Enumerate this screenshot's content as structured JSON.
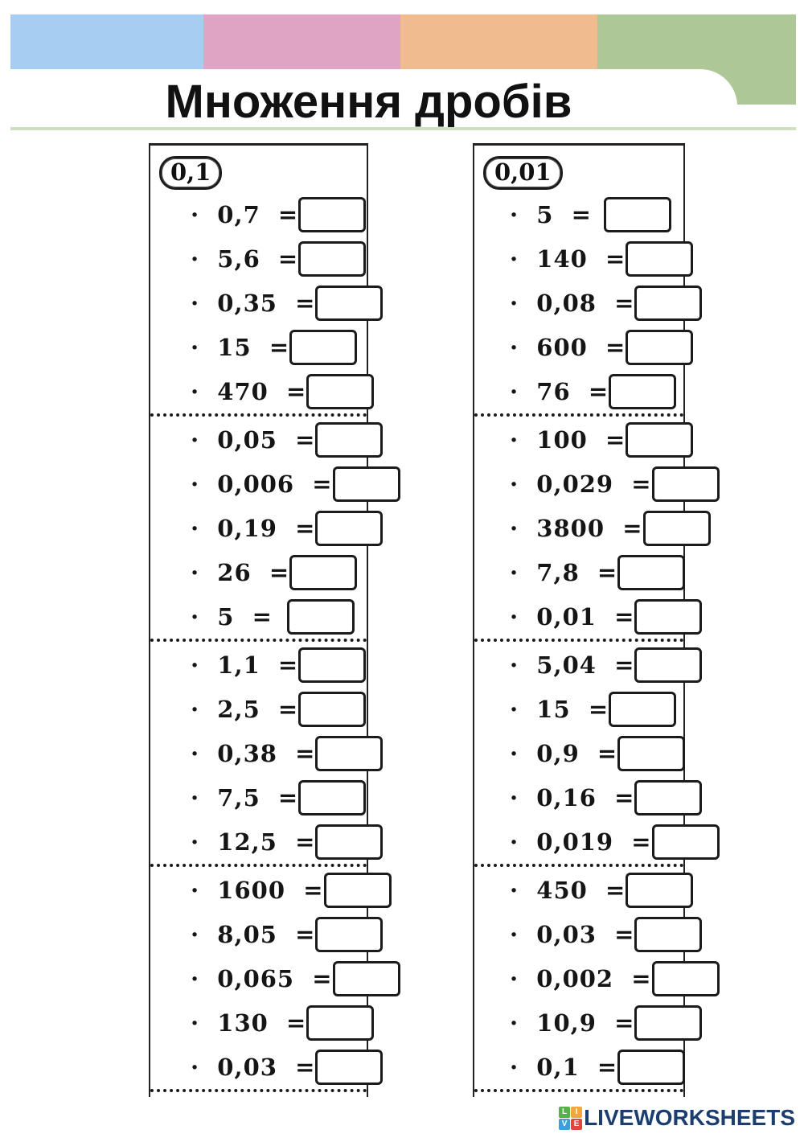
{
  "page": {
    "title": "Множення дробів",
    "colors": {
      "bar_blue": "#A5CEF2",
      "bar_pink": "#DFA3C3",
      "bar_orange": "#F0BC8E",
      "bar_green": "#ADC796",
      "divider_line": "#CFE0C0",
      "ink": "#1B1B1B",
      "logo_navy": "#1C3E6E"
    }
  },
  "worksheet": {
    "operator": "·",
    "equals": "=",
    "columns": [
      {
        "badge": "0,1",
        "groups": [
          [
            "0,7",
            "5,6",
            "0,35",
            "15",
            "470"
          ],
          [
            "0,05",
            "0,006",
            "0,19",
            "26",
            "5"
          ],
          [
            "1,1",
            "2,5",
            "0,38",
            "7,5",
            "12,5"
          ],
          [
            "1600",
            "8,05",
            "0,065",
            "130",
            "0,03"
          ]
        ]
      },
      {
        "badge": "0,01",
        "groups": [
          [
            "5",
            "140",
            "0,08",
            "600",
            "76"
          ],
          [
            "100",
            "0,029",
            "3800",
            "7,8",
            "0,01"
          ],
          [
            "5,04",
            "15",
            "0,9",
            "0,16",
            "0,019"
          ],
          [
            "450",
            "0,03",
            "0,002",
            "10,9",
            "0,1"
          ]
        ]
      }
    ]
  },
  "footer": {
    "logo_text": "LIVEWORKSHEETS",
    "logo_squares": [
      {
        "letter": "L",
        "color": "#56B04C"
      },
      {
        "letter": "I",
        "color": "#F2A63B"
      },
      {
        "letter": "V",
        "color": "#3D9FD8"
      },
      {
        "letter": "E",
        "color": "#E2453F"
      }
    ]
  }
}
